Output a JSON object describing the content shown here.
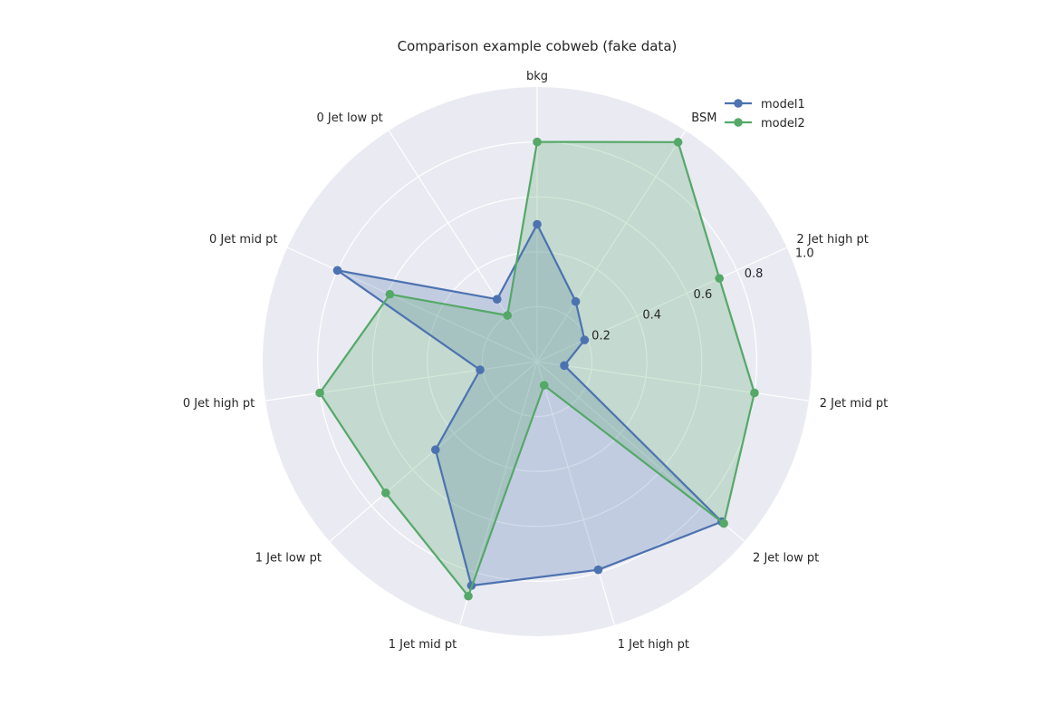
{
  "chart_data": {
    "type": "radar",
    "title": "Comparison example cobweb (fake data)",
    "categories": [
      "bkg",
      "BSM",
      "2 Jet high pt",
      "2 Jet mid pt",
      "2 Jet low pt",
      "1 Jet high pt",
      "1 Jet mid pt",
      "1 Jet low pt",
      "0 Jet high pt",
      "0 Jet mid pt",
      "0 Jet low pt"
    ],
    "rlim": [
      0,
      1.0
    ],
    "r_ticks": [
      0.2,
      0.4,
      0.6,
      0.8,
      1.0
    ],
    "r_tick_labels": [
      "0.2",
      "0.4",
      "0.6",
      "0.8",
      "1.0"
    ],
    "grid": true,
    "legend": "top-right",
    "series": [
      {
        "name": "model1",
        "color": "#4c72b0",
        "values": [
          0.5,
          0.26,
          0.19,
          0.1,
          0.89,
          0.79,
          0.85,
          0.49,
          0.21,
          0.8,
          0.27
        ]
      },
      {
        "name": "model2",
        "color": "#55a868",
        "values": [
          0.8,
          0.95,
          0.73,
          0.8,
          0.9,
          0.09,
          0.89,
          0.73,
          0.8,
          0.59,
          0.2
        ]
      }
    ]
  }
}
